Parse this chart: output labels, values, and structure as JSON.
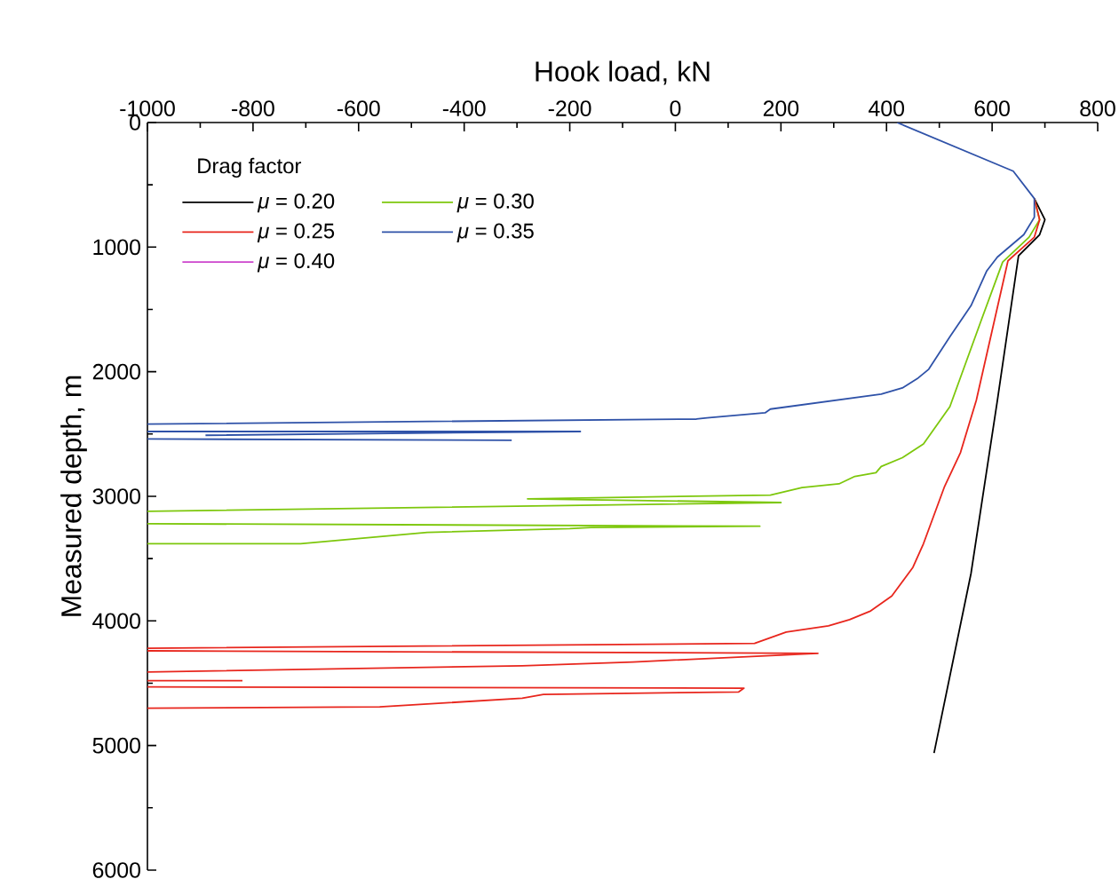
{
  "chart_data": {
    "type": "line",
    "xlabel": "Hook load, kN",
    "ylabel": "Measured depth, m",
    "legend_title": "Drag factor",
    "xlim": [
      -1000,
      800
    ],
    "xticks": [
      -1000,
      -800,
      -600,
      -400,
      -200,
      0,
      200,
      400,
      600,
      800
    ],
    "ylim": [
      6000,
      0
    ],
    "yticks": [
      0,
      1000,
      2000,
      3000,
      4000,
      5000,
      6000
    ],
    "legend": "top left",
    "series": [
      {
        "name": "*μ* = 0.20",
        "color": "#000000",
        "x": [
          680,
          700,
          690,
          650,
          610,
          560,
          490
        ],
        "values": [
          610,
          780,
          900,
          1070,
          2230,
          3620,
          5060
        ]
      },
      {
        "name": "*μ* = 0.30",
        "color": "#7dc70c",
        "x": [
          680,
          690,
          670,
          620,
          580,
          520,
          470,
          430,
          390,
          380,
          340,
          310,
          240,
          180,
          -280,
          200,
          -1000,
          null,
          -1000,
          160,
          -160,
          -200,
          -470,
          -710,
          -1000
        ],
        "values": [
          610,
          780,
          920,
          1120,
          1580,
          2280,
          2580,
          2690,
          2760,
          2810,
          2840,
          2900,
          2930,
          2990,
          3020,
          3050,
          3120,
          null,
          3220,
          3240,
          3250,
          3260,
          3290,
          3380,
          3380
        ]
      },
      {
        "name": "*μ* = 0.25",
        "color": "#e8261d",
        "x": [
          680,
          690,
          680,
          630,
          570,
          540,
          510,
          470,
          450,
          410,
          370,
          330,
          290,
          210,
          150,
          -1000,
          null,
          -1000,
          270,
          -80,
          -290,
          -1000,
          null,
          -1000,
          -820,
          null,
          -1000,
          130,
          120,
          -250,
          -290,
          -560,
          -1000
        ],
        "values": [
          610,
          780,
          920,
          1110,
          2230,
          2650,
          2920,
          3380,
          3570,
          3800,
          3920,
          3990,
          4040,
          4090,
          4180,
          4220,
          null,
          4240,
          4260,
          4330,
          4360,
          4410,
          null,
          4480,
          4480,
          null,
          4530,
          4540,
          4570,
          4590,
          4620,
          4690,
          4700
        ]
      },
      {
        "name": "*μ* = 0.35",
        "color": "#2f52a8",
        "x": [
          420,
          640,
          680,
          680,
          660,
          610,
          590,
          560,
          520,
          480,
          460,
          430,
          390,
          180,
          170,
          60,
          40,
          -1000,
          null,
          -1000,
          -180,
          -890,
          null,
          -1000,
          -310
        ],
        "values": [
          0,
          390,
          610,
          760,
          900,
          1080,
          1190,
          1470,
          1720,
          1980,
          2050,
          2130,
          2180,
          2300,
          2330,
          2370,
          2380,
          2420,
          null,
          2480,
          2480,
          2510,
          null,
          2540,
          2550
        ]
      },
      {
        "name": "*μ* = 0.40",
        "color": "#cc44cc",
        "x": [
          null
        ],
        "values": [
          null
        ]
      }
    ]
  }
}
